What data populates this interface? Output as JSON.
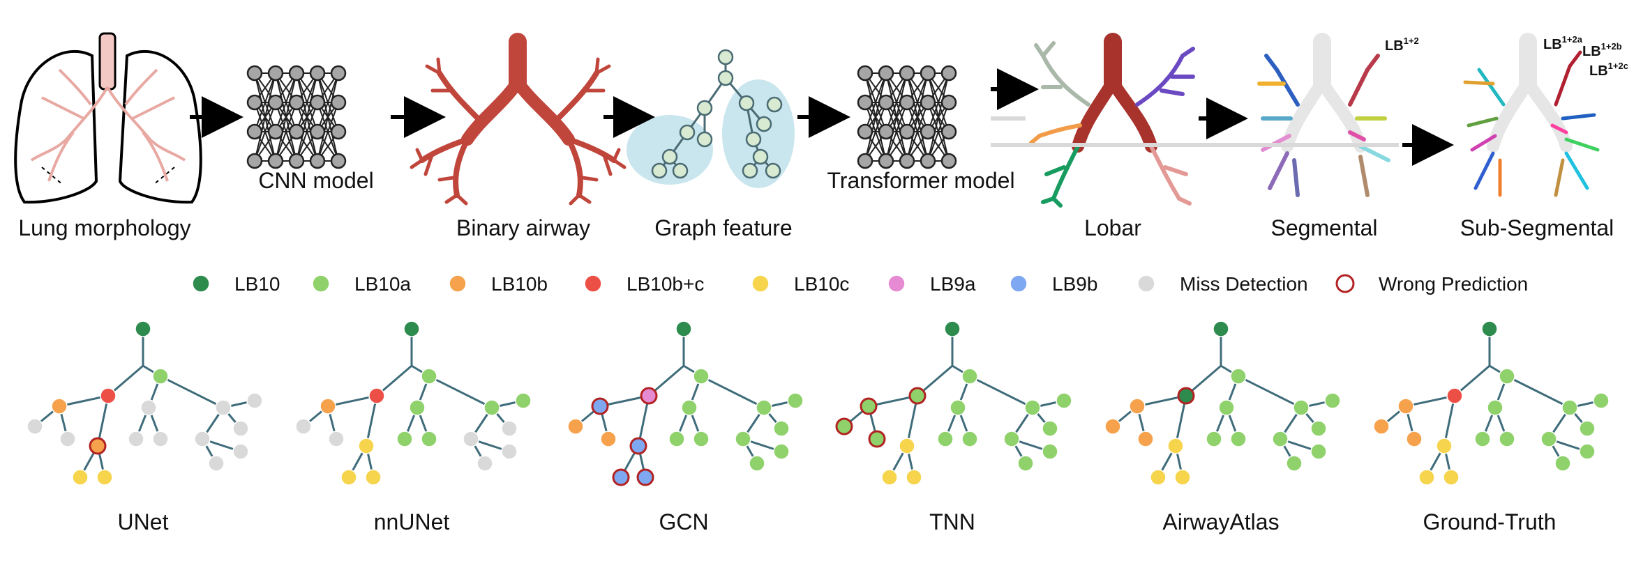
{
  "pipeline": {
    "stages": [
      {
        "id": "lung",
        "label": "Lung morphology"
      },
      {
        "id": "cnn",
        "label": "CNN model"
      },
      {
        "id": "binary",
        "label": "Binary airway"
      },
      {
        "id": "graph",
        "label": "Graph feature"
      },
      {
        "id": "transformer",
        "label": "Transformer model"
      },
      {
        "id": "lobar",
        "label": "Lobar"
      },
      {
        "id": "segmental",
        "label": "Segmental"
      },
      {
        "id": "subsegmental",
        "label": "Sub-Segmental"
      }
    ],
    "annotations": {
      "seg_lb": "LB",
      "seg_sup": "1+2",
      "sub1_lb": "LB",
      "sub1_sup": "1+2a",
      "sub2_lb": "LB",
      "sub2_sup": "1+2b",
      "sub3_lb": "LB",
      "sub3_sup": "1+2c"
    }
  },
  "legend": [
    {
      "label": "LB10",
      "color": "#2e8b4e"
    },
    {
      "label": "LB10a",
      "color": "#8fd16a"
    },
    {
      "label": "LB10b",
      "color": "#f6a14b"
    },
    {
      "label": "LB10b+c",
      "color": "#ec4f45"
    },
    {
      "label": "LB10c",
      "color": "#f6d44b"
    },
    {
      "label": "LB9a",
      "color": "#e58ad3"
    },
    {
      "label": "LB9b",
      "color": "#7fa8f2"
    },
    {
      "label": "Miss Detection",
      "color": "#d9d9d9"
    },
    {
      "label": "Wrong Prediction",
      "color": "#b22222",
      "ring": true
    }
  ],
  "methods": [
    {
      "label": "UNet",
      "colors": {
        "root": "#2e8b4e",
        "n1": "#ec4f45",
        "n2": "#f6a14b",
        "n3": "#d9d9d9",
        "n4": "#d9d9d9",
        "n5": "#f6a14b",
        "n6": "#f6d44b",
        "n7": "#f6d44b",
        "a": "#8fd16a",
        "b": "#d9d9d9",
        "c": "#d9d9d9",
        "d": "#d9d9d9",
        "e": "#d9d9d9",
        "f": "#d9d9d9",
        "g": "#d9d9d9",
        "h": "#d9d9d9",
        "i": "#d9d9d9",
        "j": "#d9d9d9"
      },
      "wrong": [
        "n5"
      ]
    },
    {
      "label": "nnUNet",
      "colors": {
        "root": "#2e8b4e",
        "n1": "#ec4f45",
        "n2": "#f6a14b",
        "n3": "#d9d9d9",
        "n4": "#d9d9d9",
        "n5": "#f6d44b",
        "n6": "#f6d44b",
        "n7": "#f6d44b",
        "a": "#8fd16a",
        "b": "#8fd16a",
        "c": "#8fd16a",
        "d": "#8fd16a",
        "e": "#8fd16a",
        "f": "#8fd16a",
        "g": "#d9d9d9",
        "h": "#d9d9d9",
        "i": "#d9d9d9",
        "j": "#d9d9d9"
      },
      "wrong": []
    },
    {
      "label": "GCN",
      "colors": {
        "root": "#2e8b4e",
        "n1": "#e58ad3",
        "n2": "#7fa8f2",
        "n3": "#f6a14b",
        "n4": "#f6a14b",
        "n5": "#7fa8f2",
        "n6": "#7fa8f2",
        "n7": "#7fa8f2",
        "a": "#8fd16a",
        "b": "#8fd16a",
        "c": "#8fd16a",
        "d": "#8fd16a",
        "e": "#8fd16a",
        "f": "#8fd16a",
        "g": "#8fd16a",
        "h": "#8fd16a",
        "i": "#8fd16a",
        "j": "#8fd16a",
        "x1": "#f6d44b",
        "x2": "#f6d44b"
      },
      "wrong": [
        "n1",
        "n2",
        "n5",
        "n6",
        "n7",
        "x1",
        "x2"
      ]
    },
    {
      "label": "TNN",
      "colors": {
        "root": "#2e8b4e",
        "n1": "#8fd16a",
        "n2": "#8fd16a",
        "n3": "#8fd16a",
        "n4": "#8fd16a",
        "n5": "#f6d44b",
        "n6": "#f6d44b",
        "n7": "#f6d44b",
        "a": "#8fd16a",
        "b": "#8fd16a",
        "c": "#8fd16a",
        "d": "#8fd16a",
        "e": "#8fd16a",
        "f": "#8fd16a",
        "g": "#8fd16a",
        "h": "#8fd16a",
        "i": "#8fd16a",
        "j": "#8fd16a"
      },
      "wrong": [
        "n1",
        "n2",
        "n3",
        "n4"
      ]
    },
    {
      "label": "AirwayAtlas",
      "colors": {
        "root": "#2e8b4e",
        "n1": "#2e8b4e",
        "n2": "#f6a14b",
        "n3": "#f6a14b",
        "n4": "#f6a14b",
        "n5": "#f6d44b",
        "n6": "#f6d44b",
        "n7": "#f6d44b",
        "a": "#8fd16a",
        "b": "#8fd16a",
        "c": "#8fd16a",
        "d": "#8fd16a",
        "e": "#8fd16a",
        "f": "#8fd16a",
        "g": "#8fd16a",
        "h": "#8fd16a",
        "i": "#8fd16a",
        "j": "#8fd16a"
      },
      "wrong": [
        "n1"
      ]
    },
    {
      "label": "Ground-Truth",
      "colors": {
        "root": "#2e8b4e",
        "n1": "#ec4f45",
        "n2": "#f6a14b",
        "n3": "#f6a14b",
        "n4": "#f6a14b",
        "n5": "#f6d44b",
        "n6": "#f6d44b",
        "n7": "#f6d44b",
        "a": "#8fd16a",
        "b": "#8fd16a",
        "c": "#8fd16a",
        "d": "#8fd16a",
        "e": "#8fd16a",
        "f": "#8fd16a",
        "g": "#8fd16a",
        "h": "#8fd16a",
        "i": "#8fd16a",
        "j": "#8fd16a"
      },
      "wrong": []
    }
  ]
}
